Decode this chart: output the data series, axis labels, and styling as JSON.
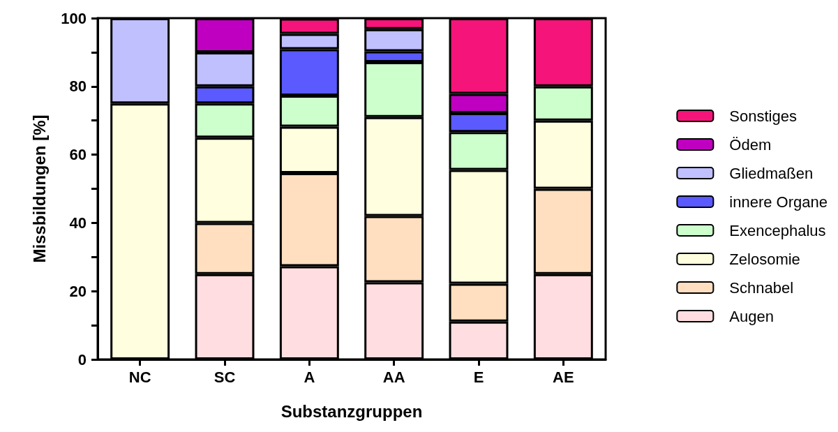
{
  "chart_data": {
    "type": "bar",
    "stacked": true,
    "xlabel": "Substanzgruppen",
    "ylabel": "Missbildungen [%]",
    "categories": [
      "NC",
      "SC",
      "A",
      "AA",
      "E",
      "AE"
    ],
    "ylim": [
      0,
      100
    ],
    "yticks": [
      0,
      20,
      40,
      60,
      80,
      100
    ],
    "grid": false,
    "legend": "right",
    "series": [
      {
        "name": "Augen",
        "color": "#ffdde0",
        "values": [
          null,
          25,
          27.3,
          22.6,
          11.1,
          25
        ]
      },
      {
        "name": "Schnabel",
        "color": "#ffdfc0",
        "values": [
          null,
          15,
          27.3,
          19.4,
          11.1,
          25
        ]
      },
      {
        "name": "Zelosomie",
        "color": "#ffffe0",
        "values": [
          75,
          25,
          13.6,
          29.0,
          33.3,
          20
        ]
      },
      {
        "name": "Exencephalus",
        "color": "#ccffcc",
        "values": [
          null,
          10,
          9.1,
          16.1,
          11.1,
          10
        ]
      },
      {
        "name": "innere Organe",
        "color": "#5a5aff",
        "values": [
          null,
          5,
          13.6,
          3.2,
          5.6,
          null
        ]
      },
      {
        "name": "Gliedmaßen",
        "color": "#c0c0ff",
        "values": [
          25,
          10,
          4.5,
          6.5,
          null,
          null
        ]
      },
      {
        "name": "Ödem",
        "color": "#c000c0",
        "values": [
          null,
          10,
          null,
          null,
          5.6,
          null
        ]
      },
      {
        "name": "Sonstiges",
        "color": "#f5147a",
        "values": [
          null,
          null,
          4.5,
          3.2,
          22.2,
          20
        ]
      }
    ]
  }
}
